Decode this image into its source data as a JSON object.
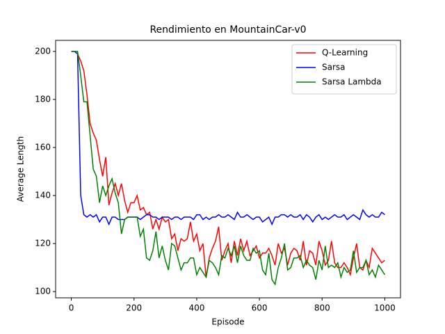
{
  "chart_data": {
    "type": "line",
    "title": "Rendimiento en MountainCar-v0",
    "x_label": "Episode",
    "y_label": "Average Length",
    "x": [
      0,
      10,
      20,
      30,
      40,
      50,
      60,
      70,
      80,
      90,
      100,
      110,
      120,
      130,
      140,
      150,
      160,
      170,
      180,
      190,
      200,
      210,
      220,
      230,
      240,
      250,
      260,
      270,
      280,
      290,
      300,
      310,
      320,
      330,
      340,
      350,
      360,
      370,
      380,
      390,
      400,
      410,
      420,
      430,
      440,
      450,
      460,
      470,
      480,
      490,
      500,
      510,
      520,
      530,
      540,
      550,
      560,
      570,
      580,
      590,
      600,
      610,
      620,
      630,
      640,
      650,
      660,
      670,
      680,
      690,
      700,
      710,
      720,
      730,
      740,
      750,
      760,
      770,
      780,
      790,
      800,
      810,
      820,
      830,
      840,
      850,
      860,
      870,
      880,
      890,
      900,
      910,
      920,
      930,
      940,
      950,
      960,
      970,
      980,
      990,
      1000
    ],
    "series": [
      {
        "name": "Q-Learning",
        "color": "#ff0000",
        "values": [
          200,
          200,
          199,
          196,
          192,
          182,
          170,
          166,
          163,
          155,
          148,
          156,
          136,
          141,
          145,
          140,
          145,
          138,
          133,
          137,
          137,
          140,
          134,
          135,
          132,
          133,
          126,
          130,
          126,
          131,
          129,
          130,
          122,
          124,
          117,
          122,
          121,
          122,
          129,
          121,
          124,
          117,
          120,
          106,
          114,
          118,
          121,
          127,
          113,
          117,
          120,
          112,
          121,
          115,
          122,
          117,
          121,
          115,
          117,
          119,
          114,
          116,
          116,
          118,
          115,
          111,
          120,
          116,
          118,
          111,
          116,
          118,
          117,
          113,
          121,
          111,
          117,
          116,
          111,
          121,
          117,
          111,
          113,
          121,
          112,
          110,
          110,
          112,
          110,
          107,
          114,
          120,
          110,
          109,
          113,
          110,
          118,
          116,
          114,
          112,
          113
        ]
      },
      {
        "name": "Sarsa",
        "color": "#0000ff",
        "values": [
          200,
          200,
          199,
          140,
          132,
          131,
          132,
          131,
          132,
          129,
          131,
          131,
          128,
          131,
          131,
          130,
          130,
          130,
          131,
          131,
          131,
          131,
          130,
          131,
          132,
          132,
          131,
          131,
          130,
          131,
          131,
          131,
          130,
          131,
          131,
          130,
          131,
          131,
          131,
          130,
          132,
          132,
          130,
          131,
          130,
          131,
          131,
          132,
          131,
          131,
          132,
          131,
          130,
          133,
          131,
          131,
          132,
          131,
          130,
          131,
          131,
          129,
          130,
          131,
          128,
          131,
          131,
          132,
          132,
          131,
          132,
          131,
          131,
          132,
          130,
          132,
          131,
          129,
          131,
          132,
          130,
          131,
          130,
          131,
          132,
          131,
          131,
          132,
          130,
          131,
          132,
          131,
          130,
          134,
          132,
          131,
          132,
          131,
          131,
          133,
          132
        ]
      },
      {
        "name": "Sarsa Lambda",
        "color": "#008000",
        "values": [
          200,
          200,
          200,
          190,
          179,
          179,
          165,
          151,
          148,
          137,
          144,
          140,
          144,
          147,
          141,
          137,
          124,
          130,
          131,
          131,
          131,
          131,
          123,
          126,
          114,
          113,
          117,
          125,
          114,
          119,
          113,
          109,
          120,
          119,
          114,
          109,
          112,
          112,
          114,
          114,
          107,
          110,
          108,
          106,
          113,
          112,
          110,
          107,
          115,
          114,
          118,
          115,
          119,
          112,
          119,
          115,
          113,
          113,
          118,
          116,
          117,
          109,
          107,
          116,
          105,
          103,
          110,
          114,
          120,
          109,
          110,
          114,
          114,
          115,
          110,
          113,
          111,
          110,
          105,
          113,
          109,
          119,
          110,
          111,
          110,
          112,
          106,
          110,
          108,
          109,
          117,
          108,
          110,
          110,
          113,
          107,
          109,
          106,
          111,
          109,
          107
        ]
      }
    ],
    "xlim": [
      -50,
      1050
    ],
    "ylim": [
      97.4,
      204.6
    ],
    "xticks": [
      0,
      200,
      400,
      600,
      800,
      1000
    ],
    "yticks": [
      100,
      120,
      140,
      160,
      180,
      200
    ],
    "legend": "upper right"
  }
}
